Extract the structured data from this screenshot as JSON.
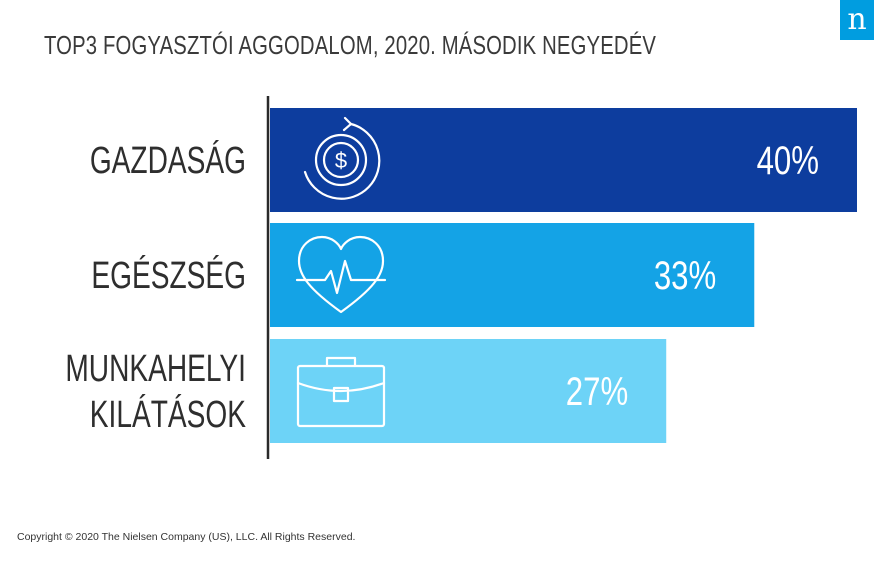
{
  "title": "TOP3 FOGYASZTÓI AGGODALOM, 2020. MÁSODIK NEGYEDÉV",
  "logo": {
    "text": "n",
    "color": "#009de0"
  },
  "copyright": "Copyright © 2020 The Nielsen Company (US), LLC. All Rights Reserved.",
  "chart_data": {
    "type": "bar",
    "orientation": "horizontal",
    "categories": [
      [
        "GAZDASÁG"
      ],
      [
        "EGÉSZSÉG"
      ],
      [
        "MUNKAHELYI",
        "KILÁTÁSOK"
      ]
    ],
    "values": [
      40,
      33,
      27
    ],
    "value_labels": [
      "40%",
      "33%",
      "27%"
    ],
    "colors": [
      "#0d3d9e",
      "#14a3e6",
      "#6dd3f7"
    ],
    "icons": [
      "dollar-cycle-icon",
      "heart-pulse-icon",
      "briefcase-icon"
    ],
    "xlim": [
      0,
      40
    ],
    "grid": false,
    "legend": "none"
  }
}
